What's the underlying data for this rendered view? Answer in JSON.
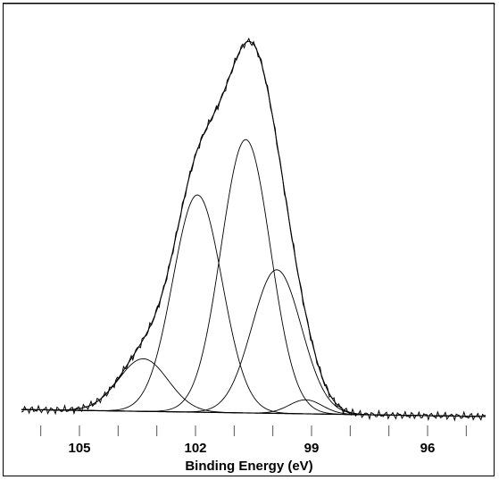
{
  "chart_data": {
    "type": "line",
    "title": "",
    "xlabel": "Binding Energy (eV)",
    "ylabel": "",
    "x_axis_reversed": true,
    "xlim": [
      106.5,
      94.5
    ],
    "ylim": [
      0,
      1.0
    ],
    "grid": false,
    "legend": "none",
    "y_axis_visible": false,
    "tick_labels": [
      "105",
      "102",
      "99",
      "96"
    ],
    "tick_values": [
      105,
      102,
      99,
      96
    ],
    "minor_tick_values": [
      106,
      104,
      103,
      101,
      100,
      98,
      97,
      95
    ],
    "background": {
      "description": "linear baseline",
      "points": [
        [
          106.5,
          0.02
        ],
        [
          94.5,
          0.0
        ]
      ]
    },
    "envelope_noise_amplitude": 0.012,
    "series": [
      {
        "center": 103.35,
        "amplitude": 0.15,
        "fwhm": 1.5
      },
      {
        "center": 101.95,
        "amplitude": 0.62,
        "fwhm": 1.5
      },
      {
        "center": 100.7,
        "amplitude": 0.78,
        "fwhm": 1.5
      },
      {
        "center": 99.9,
        "amplitude": 0.41,
        "fwhm": 1.5
      },
      {
        "center": 99.15,
        "amplitude": 0.04,
        "fwhm": 1.0
      }
    ],
    "colors": {
      "line": "#000000",
      "frame": "#000000"
    }
  }
}
